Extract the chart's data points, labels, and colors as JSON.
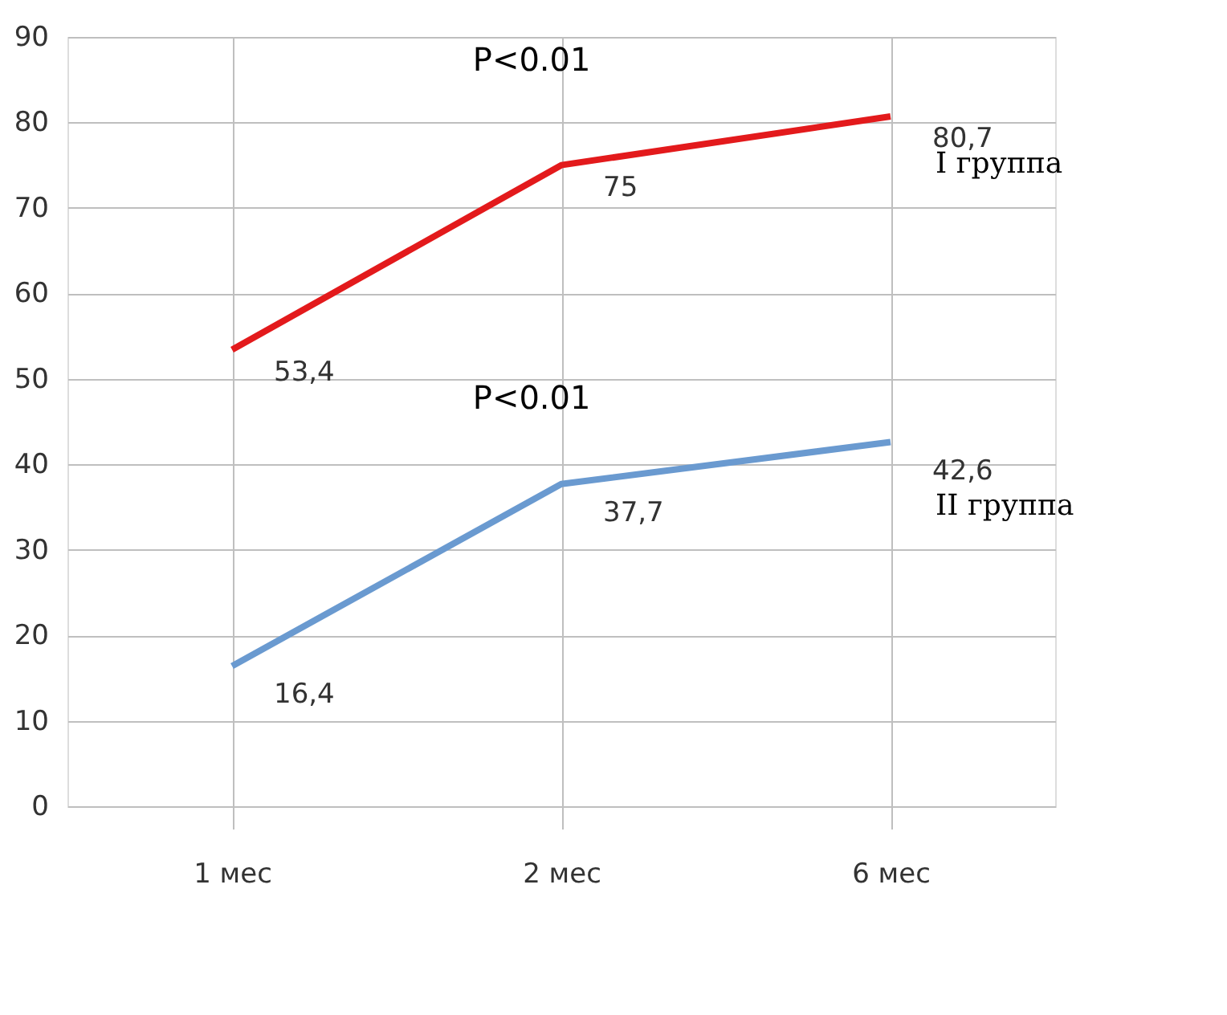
{
  "chart_data": {
    "type": "line",
    "categories": [
      "1  мес",
      "2 мес",
      "6 мес"
    ],
    "series": [
      {
        "name": "I группа",
        "color": "#e31a1c",
        "values": [
          53.4,
          75,
          80.7
        ],
        "value_labels": [
          "53,4",
          "75",
          "80,7"
        ]
      },
      {
        "name": "II группа",
        "color": "#6a9ad0",
        "values": [
          16.4,
          37.7,
          42.6
        ],
        "value_labels": [
          "16,4",
          "37,7",
          "42,6"
        ]
      }
    ],
    "ylim": [
      0,
      90
    ],
    "yticks": [
      0,
      10,
      20,
      30,
      40,
      50,
      60,
      70,
      80,
      90
    ],
    "grid": true,
    "legend": false,
    "marker": "none",
    "line_style": "solid",
    "annotations": [
      "P<0.01",
      "P<0.01"
    ]
  }
}
